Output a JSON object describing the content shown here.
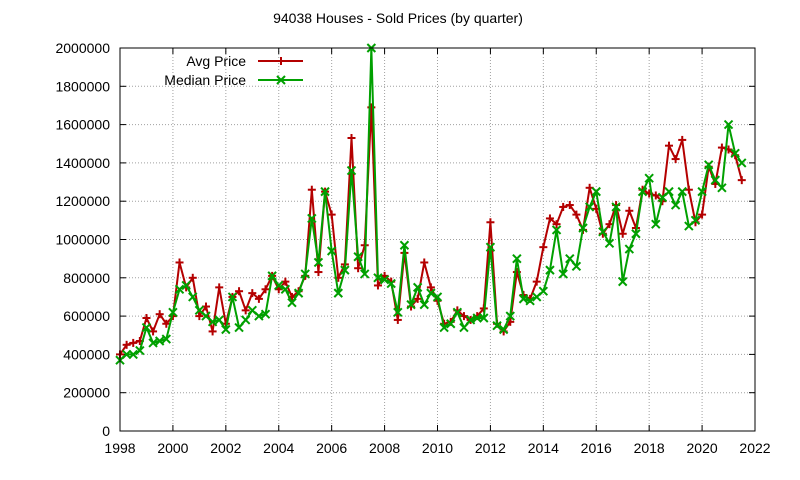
{
  "chart_data": {
    "type": "line",
    "title": "94038 Houses - Sold Prices (by quarter)",
    "xlabel": "",
    "ylabel": "",
    "xlim": [
      1998,
      2022
    ],
    "ylim": [
      0,
      2000000
    ],
    "x_ticks": [
      "1998",
      "2000",
      "2002",
      "2004",
      "2006",
      "2008",
      "2010",
      "2012",
      "2014",
      "2016",
      "2018",
      "2020",
      "2022"
    ],
    "y_ticks": [
      "0",
      "200000",
      "400000",
      "600000",
      "800000",
      "1000000",
      "1200000",
      "1400000",
      "1600000",
      "1800000",
      "2000000"
    ],
    "grid": true,
    "legend_position": "top-left",
    "x": [
      1998,
      1998.25,
      1998.5,
      1998.75,
      1999,
      1999.25,
      1999.5,
      1999.75,
      2000,
      2000.25,
      2000.5,
      2000.75,
      2001,
      2001.25,
      2001.5,
      2001.75,
      2002,
      2002.25,
      2002.5,
      2002.75,
      2003,
      2003.25,
      2003.5,
      2003.75,
      2004,
      2004.25,
      2004.5,
      2004.75,
      2005,
      2005.25,
      2005.5,
      2005.75,
      2006,
      2006.25,
      2006.5,
      2006.75,
      2007,
      2007.25,
      2007.5,
      2007.75,
      2008,
      2008.25,
      2008.5,
      2008.75,
      2009,
      2009.25,
      2009.5,
      2009.75,
      2010,
      2010.25,
      2010.5,
      2010.75,
      2011,
      2011.25,
      2011.5,
      2011.75,
      2012,
      2012.25,
      2012.5,
      2012.75,
      2013,
      2013.25,
      2013.5,
      2013.75,
      2014,
      2014.25,
      2014.5,
      2014.75,
      2015,
      2015.25,
      2015.5,
      2015.75,
      2016,
      2016.25,
      2016.5,
      2016.75,
      2017,
      2017.25,
      2017.5,
      2017.75,
      2018,
      2018.25,
      2018.5,
      2018.75,
      2019,
      2019.25,
      2019.5,
      2019.75,
      2020,
      2020.25,
      2020.5,
      2020.75,
      2021,
      2021.25,
      2021.5
    ],
    "series": [
      {
        "name": "Avg Price",
        "color": "#b40000",
        "marker": "plus",
        "values": [
          400000,
          450000,
          460000,
          470000,
          590000,
          520000,
          610000,
          560000,
          600000,
          880000,
          750000,
          800000,
          600000,
          650000,
          520000,
          750000,
          560000,
          700000,
          730000,
          630000,
          720000,
          690000,
          740000,
          810000,
          740000,
          780000,
          700000,
          730000,
          810000,
          1260000,
          830000,
          1250000,
          1130000,
          800000,
          870000,
          1530000,
          850000,
          970000,
          1690000,
          760000,
          810000,
          780000,
          580000,
          930000,
          650000,
          690000,
          880000,
          750000,
          680000,
          560000,
          570000,
          630000,
          600000,
          580000,
          600000,
          640000,
          1090000,
          560000,
          520000,
          570000,
          830000,
          710000,
          690000,
          780000,
          960000,
          1110000,
          1080000,
          1170000,
          1180000,
          1130000,
          1050000,
          1270000,
          1160000,
          1030000,
          1080000,
          1180000,
          1030000,
          1150000,
          1060000,
          1260000,
          1240000,
          1230000,
          1200000,
          1490000,
          1420000,
          1520000,
          1260000,
          1090000,
          1130000,
          1380000,
          1290000,
          1480000,
          1470000,
          1440000,
          1310000
        ]
      },
      {
        "name": "Median Price",
        "color": "#00a000",
        "marker": "cross",
        "values": [
          370000,
          400000,
          400000,
          420000,
          540000,
          460000,
          470000,
          480000,
          620000,
          740000,
          760000,
          700000,
          630000,
          600000,
          570000,
          580000,
          530000,
          700000,
          540000,
          580000,
          630000,
          600000,
          610000,
          810000,
          760000,
          740000,
          670000,
          720000,
          820000,
          1110000,
          880000,
          1250000,
          940000,
          720000,
          840000,
          1360000,
          910000,
          820000,
          2000000,
          800000,
          790000,
          770000,
          620000,
          970000,
          660000,
          750000,
          660000,
          720000,
          700000,
          540000,
          560000,
          620000,
          540000,
          580000,
          590000,
          590000,
          960000,
          550000,
          530000,
          600000,
          900000,
          690000,
          680000,
          700000,
          730000,
          840000,
          1050000,
          820000,
          900000,
          860000,
          1060000,
          1170000,
          1250000,
          1040000,
          980000,
          1170000,
          780000,
          950000,
          1030000,
          1250000,
          1320000,
          1080000,
          1220000,
          1250000,
          1180000,
          1250000,
          1070000,
          1100000,
          1250000,
          1390000,
          1310000,
          1270000,
          1600000,
          1450000,
          1400000
        ]
      }
    ]
  }
}
